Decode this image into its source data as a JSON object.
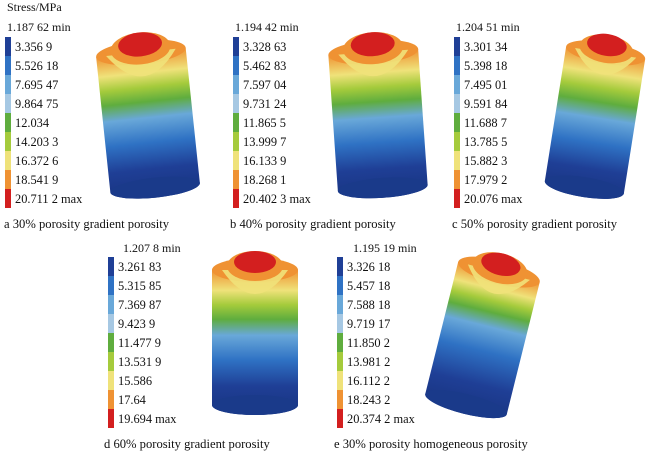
{
  "colors": [
    "#1f3f96",
    "#2f72c4",
    "#69a8d9",
    "#a6c8e3",
    "#5fad3e",
    "#a5cb3c",
    "#efe27a",
    "#ef9233",
    "#d31f1f"
  ],
  "panels": [
    {
      "stress_label": "Stress/MPa",
      "min": "1.187 62 min",
      "levels": [
        "3.356 9",
        "5.526 18",
        "7.695 47",
        "9.864 75",
        "12.034",
        "14.203 3",
        "16.372 6",
        "18.541 9",
        "20.711 2 max"
      ],
      "caption": "a  30% porosity gradient porosity"
    },
    {
      "stress_label": "",
      "min": "1.194 42 min",
      "levels": [
        "3.328 63",
        "5.462 83",
        "7.597 04",
        "9.731 24",
        "11.865 5",
        "13.999 7",
        "16.133 9",
        "18.268 1",
        "20.402 3 max"
      ],
      "caption": "b  40% porosity gradient porosity"
    },
    {
      "stress_label": "",
      "min": "1.204 51 min",
      "levels": [
        "3.301 34",
        "5.398 18",
        "7.495 01",
        "9.591 84",
        "11.688 7",
        "13.785 5",
        "15.882 3",
        "17.979 2",
        "20.076 max"
      ],
      "caption": "c  50% porosity gradient porosity"
    },
    {
      "stress_label": "",
      "min": "1.207 8 min",
      "levels": [
        "3.261 83",
        "5.315 85",
        "7.369 87",
        "9.423 9",
        "11.477 9",
        "13.531 9",
        "15.586",
        "17.64",
        "19.694 max"
      ],
      "caption": "d  60% porosity gradient porosity"
    },
    {
      "stress_label": "",
      "min": "1.195 19 min",
      "levels": [
        "3.326 18",
        "5.457 18",
        "7.588 18",
        "9.719 17",
        "11.850 2",
        "13.981 2",
        "16.112 2",
        "18.243 2",
        "20.374 2 max"
      ],
      "caption": "e  30% porosity homogeneous porosity"
    }
  ]
}
